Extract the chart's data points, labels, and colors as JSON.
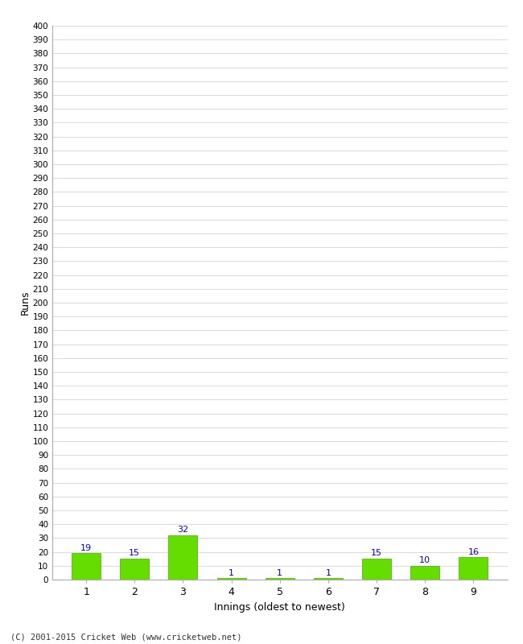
{
  "categories": [
    "1",
    "2",
    "3",
    "4",
    "5",
    "6",
    "7",
    "8",
    "9"
  ],
  "values": [
    19,
    15,
    32,
    1,
    1,
    1,
    15,
    10,
    16
  ],
  "bar_color": "#66dd00",
  "bar_edge_color": "#44aa00",
  "label_color": "#0000cc",
  "xlabel": "Innings (oldest to newest)",
  "ylabel": "Runs",
  "ylim": [
    0,
    400
  ],
  "background_color": "#ffffff",
  "grid_color": "#cccccc",
  "footer": "(C) 2001-2015 Cricket Web (www.cricketweb.net)"
}
